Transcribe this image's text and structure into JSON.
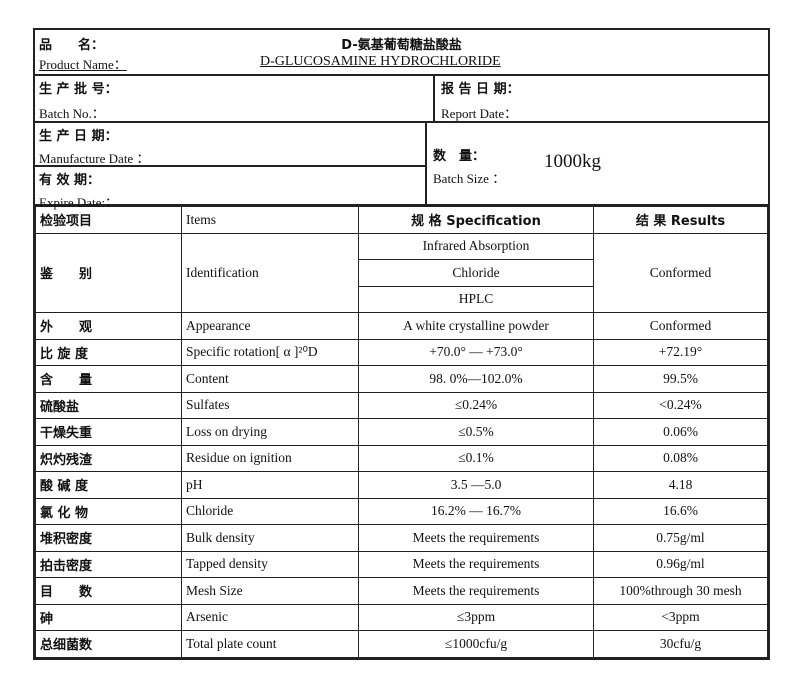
{
  "header": {
    "product_name_zh_label": "品　　名：",
    "product_name_zh": "D-氨基葡萄糖盐酸盐",
    "product_name_en_label": "Product Name：",
    "product_name_en": "D-GLUCOSAMINE  HYDROCHLORIDE",
    "batch_no_zh": "生 产 批 号：",
    "batch_no_en": "Batch  No.：",
    "report_date_zh": "报 告 日 期：",
    "report_date_en": "Report Date：",
    "mfg_date_zh": "生 产 日 期：",
    "mfg_date_en": "Manufacture Date ：",
    "expire_zh": "有 效 期：",
    "expire_en": "Expire Date:：",
    "batch_size_zh": "数　量：",
    "batch_size_en": "Batch Size ：",
    "batch_size": "1000kg"
  },
  "table": {
    "headers": {
      "item_zh": "检验项目",
      "item_en": "Items",
      "spec": "规 格  Specification",
      "result": "结 果  Results"
    },
    "identification": {
      "zh": "鉴　　别",
      "en": "Identification",
      "specs": [
        "Infrared Absorption",
        "Chloride",
        "HPLC"
      ],
      "result": "Conformed"
    },
    "rows": [
      {
        "zh": "外　　观",
        "en": "Appearance",
        "spec": "A white crystalline powder",
        "result": "Conformed"
      },
      {
        "zh": "比 旋 度",
        "en": "Specific rotation[ α ]²⁰D",
        "spec": "+70.0°  — +73.0°",
        "result": "+72.19°"
      },
      {
        "zh": "含　　量",
        "en": "Content",
        "spec": "98. 0%—102.0%",
        "result": "99.5%"
      },
      {
        "zh": "硫酸盐",
        "en": "Sulfates",
        "spec": "≤0.24%",
        "result": "<0.24%"
      },
      {
        "zh": "干燥失重",
        "en": "Loss on drying",
        "spec": "≤0.5%",
        "result": "0.06%"
      },
      {
        "zh": "炽灼残渣",
        "en": "Residue on ignition",
        "spec": "≤0.1%",
        "result": "0.08%"
      },
      {
        "zh": "酸 碱 度",
        "en": "pH",
        "spec": "3.5 —5.0",
        "result": "4.18"
      },
      {
        "zh": "氯 化 物",
        "en": "Chloride",
        "spec": "16.2% — 16.7%",
        "result": "16.6%"
      },
      {
        "zh": "堆积密度",
        "en": "Bulk density",
        "spec": "Meets the requirements",
        "result": "0.75g/ml"
      },
      {
        "zh": "拍击密度",
        "en": "Tapped density",
        "spec": "Meets the requirements",
        "result": "0.96g/ml"
      },
      {
        "zh": "目　　数",
        "en": "Mesh Size",
        "spec": "Meets the requirements",
        "result": "100%through 30 mesh"
      },
      {
        "zh": "砷",
        "en": "Arsenic",
        "spec": "≤3ppm",
        "result": "<3ppm"
      },
      {
        "zh": "总细菌数",
        "en": "Total plate count",
        "spec": "≤1000cfu/g",
        "result": "30cfu/g"
      }
    ]
  }
}
